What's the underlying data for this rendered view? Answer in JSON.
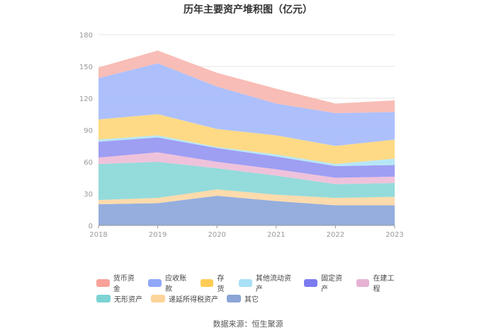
{
  "title": "历年主要资产堆积图（亿元）",
  "source": "数据来源：恒生聚源",
  "chart_data": {
    "type": "area",
    "stacked": true,
    "x": [
      "2018",
      "2019",
      "2020",
      "2021",
      "2022",
      "2023"
    ],
    "ylim": [
      0,
      180
    ],
    "yticks": [
      "0",
      "30",
      "60",
      "90",
      "120",
      "150",
      "180"
    ],
    "grid": true,
    "legend_position": "bottom",
    "series": [
      {
        "name": "其它",
        "color": "#8faadc",
        "values": [
          20,
          21,
          28,
          23,
          19,
          19
        ]
      },
      {
        "name": "递延所得税资产",
        "color": "#fcd9a8",
        "values": [
          4,
          5,
          6,
          6,
          7,
          8
        ]
      },
      {
        "name": "无形资产",
        "color": "#8ed9d9",
        "values": [
          34,
          34,
          20,
          18,
          13,
          13
        ]
      },
      {
        "name": "在建工程",
        "color": "#eebfd9",
        "values": [
          6,
          9,
          6,
          6,
          6,
          6
        ]
      },
      {
        "name": "固定资产",
        "color": "#9999f2",
        "values": [
          15,
          14,
          13,
          12,
          11,
          11
        ]
      },
      {
        "name": "其他流动资产",
        "color": "#b3e5f5",
        "values": [
          2,
          2,
          1,
          2,
          2,
          6
        ]
      },
      {
        "name": "存货",
        "color": "#ffd87f",
        "values": [
          19,
          20,
          17,
          18,
          17,
          18
        ]
      },
      {
        "name": "应收账款",
        "color": "#a9bdfc",
        "values": [
          39,
          48,
          40,
          30,
          31,
          26
        ]
      },
      {
        "name": "货币资金",
        "color": "#f8b9b2",
        "values": [
          10,
          12,
          13,
          14,
          9,
          11
        ]
      }
    ]
  },
  "legend_rows": [
    [
      {
        "label": "货币资金",
        "color": "#f8a29a"
      },
      {
        "label": "应收账款",
        "color": "#91a7f8"
      },
      {
        "label": "存货",
        "color": "#ffcd55"
      },
      {
        "label": "其他流动资产",
        "color": "#a8e0f5"
      },
      {
        "label": "固定资产",
        "color": "#7b7bef"
      },
      {
        "label": "在建工程",
        "color": "#e6b3d4"
      }
    ],
    [
      {
        "label": "无形资产",
        "color": "#7dd3d3"
      },
      {
        "label": "递延所得税资产",
        "color": "#fcd49b"
      },
      {
        "label": "其它",
        "color": "#8aa5d6"
      }
    ]
  ]
}
